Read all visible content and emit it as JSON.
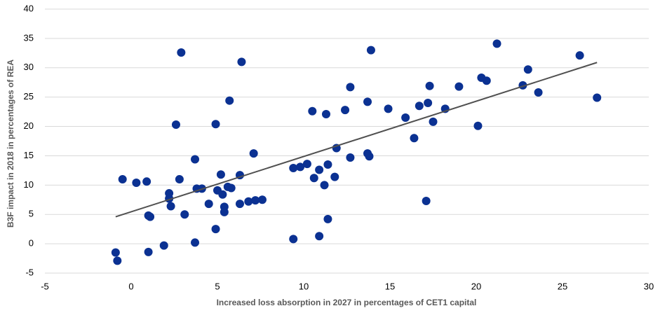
{
  "chart_data": {
    "type": "scatter",
    "xlabel": "Increased loss absorption in 2027 in percentages of CET1 capital",
    "ylabel": "B3F impact in 2018 in percentages of REA",
    "xlim": [
      -5,
      30
    ],
    "xticks": [
      -5,
      0,
      5,
      10,
      15,
      20,
      25,
      30
    ],
    "ylim": [
      -5,
      40
    ],
    "yticks": [
      -5,
      0,
      5,
      10,
      15,
      20,
      25,
      30,
      35,
      40
    ],
    "grid": true,
    "series": [
      {
        "color": "#0b3192",
        "x": [
          -0.9,
          -0.8,
          -0.5,
          0.3,
          0.9,
          1.0,
          1.1,
          1.0,
          1.9,
          2.2,
          2.2,
          2.3,
          2.6,
          2.8,
          2.9,
          3.1,
          3.7,
          3.7,
          3.8,
          4.1,
          4.5,
          4.9,
          4.9,
          5.0,
          5.2,
          5.3,
          5.4,
          5.4,
          5.6,
          5.7,
          5.8,
          6.3,
          6.3,
          6.4,
          6.8,
          7.1,
          7.2,
          7.6,
          9.4,
          9.4,
          9.8,
          10.2,
          10.5,
          10.6,
          10.9,
          10.9,
          11.2,
          11.3,
          11.4,
          11.4,
          11.8,
          11.9,
          12.4,
          12.7,
          12.7,
          13.7,
          13.7,
          13.8,
          13.9,
          14.9,
          15.9,
          16.4,
          16.7,
          17.1,
          17.2,
          17.3,
          17.5,
          18.2,
          19.0,
          20.1,
          20.3,
          20.6,
          21.2,
          22.7,
          23.0,
          23.6,
          26.0,
          27.0
        ],
        "y": [
          -1.5,
          -2.9,
          11,
          10.4,
          10.6,
          4.8,
          4.6,
          -1.4,
          -0.3,
          8.6,
          7.7,
          6.4,
          20.3,
          11,
          32.6,
          5,
          14.4,
          0.2,
          9.4,
          9.4,
          6.8,
          20.4,
          2.5,
          9.1,
          11.8,
          8.4,
          6.3,
          5.4,
          9.7,
          24.4,
          9.5,
          11.7,
          6.8,
          31,
          7.2,
          15.4,
          7.4,
          7.5,
          12.9,
          0.8,
          13.1,
          13.6,
          22.6,
          11.2,
          12.6,
          1.3,
          10,
          22.1,
          13.5,
          4.2,
          11.4,
          16.3,
          22.8,
          26.7,
          14.7,
          24.2,
          15.4,
          14.9,
          33,
          23,
          21.5,
          18,
          23.5,
          7.3,
          24,
          26.9,
          20.8,
          23,
          26.8,
          20.1,
          28.3,
          27.8,
          34.1,
          27,
          29.7,
          25.8,
          32.1,
          24.9
        ]
      }
    ],
    "trendline": {
      "color": "#505050",
      "x": [
        -0.9,
        27
      ],
      "y": [
        4.6,
        30.9
      ]
    }
  }
}
